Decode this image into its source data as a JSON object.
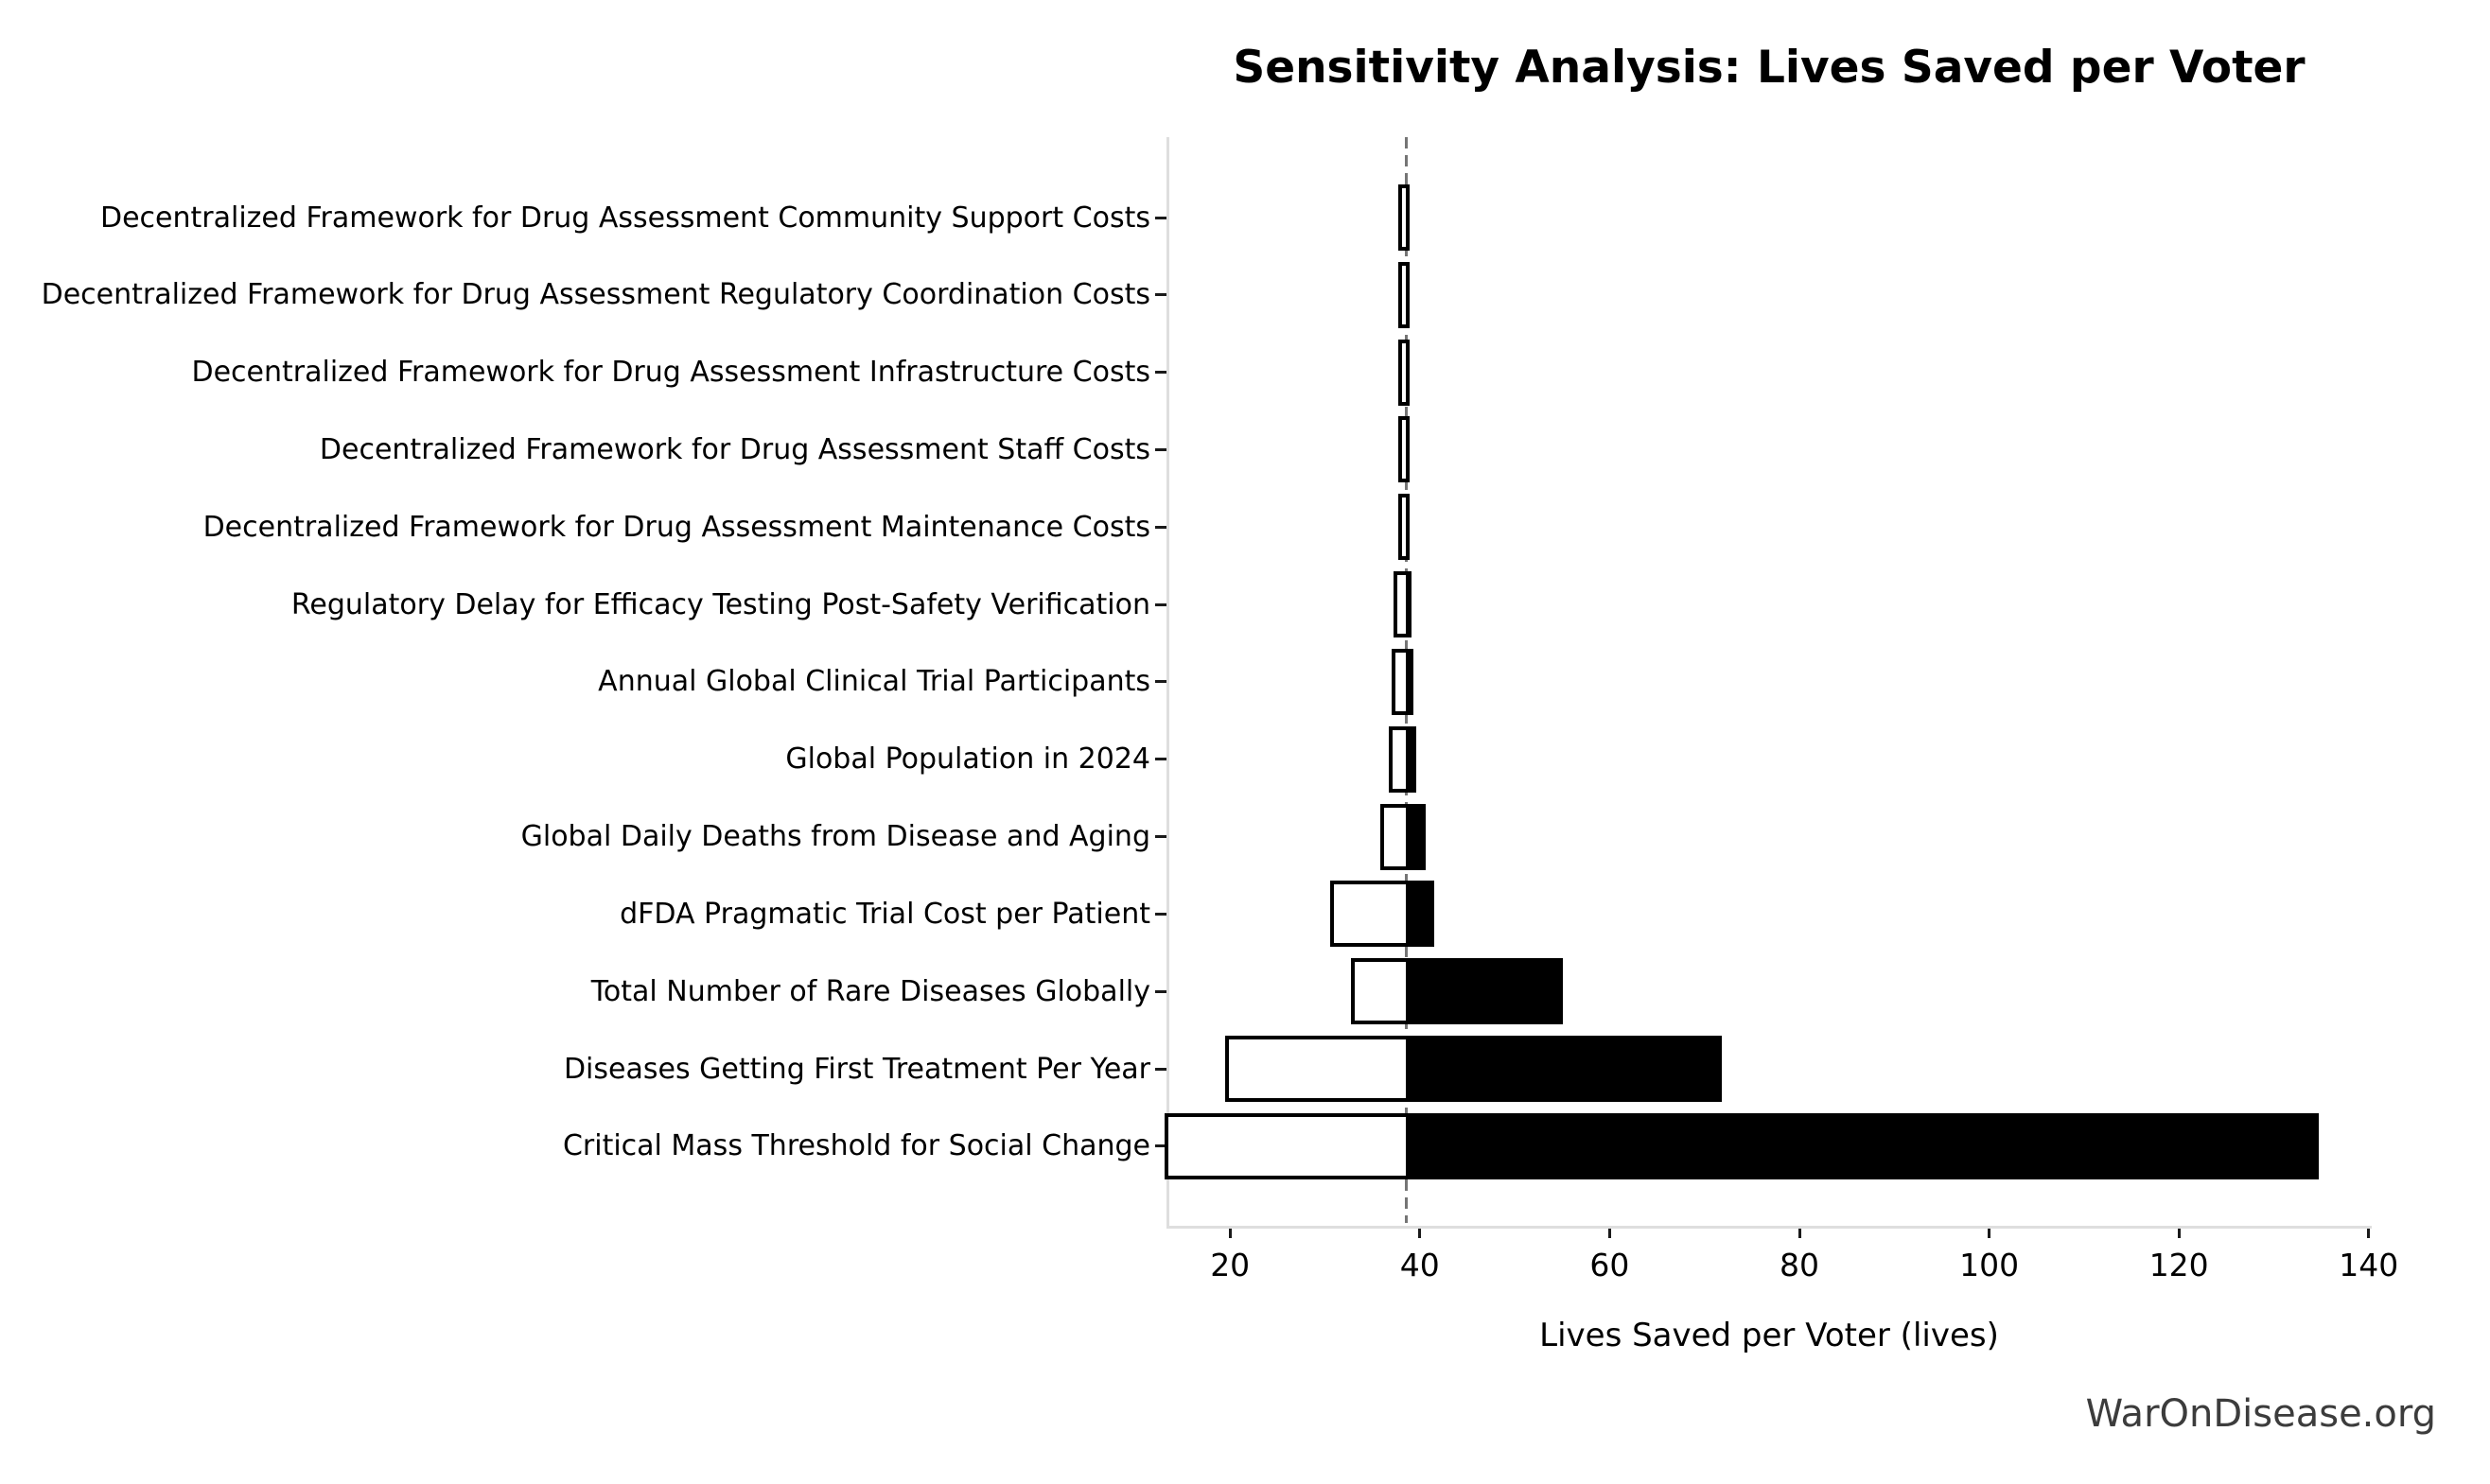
{
  "title": "Sensitivity Analysis: Lives Saved per Voter",
  "watermark": "WarOnDisease.org",
  "chart_data": {
    "type": "bar",
    "subtype": "tornado-sensitivity",
    "title": "Sensitivity Analysis: Lives Saved per Voter",
    "xlabel": "Lives Saved per Voter (lives)",
    "ylabel": "",
    "baseline": 38.5,
    "xlim": [
      13.3,
      140.3
    ],
    "xticks": [
      20,
      40,
      60,
      80,
      100,
      120,
      140
    ],
    "grid": false,
    "legend": "none",
    "baseline_line_style": "dashed-gray-vertical",
    "bar_colors": {
      "low_fill": "#ffffff",
      "high_fill": "#000000",
      "edge": "#000000"
    },
    "rows": [
      {
        "label": "Decentralized Framework for Drug Assessment Community Support Costs",
        "low": 38.1,
        "high": 38.9
      },
      {
        "label": "Decentralized Framework for Drug Assessment Regulatory Coordination Costs",
        "low": 38.1,
        "high": 38.9
      },
      {
        "label": "Decentralized Framework for Drug Assessment Infrastructure Costs",
        "low": 38.1,
        "high": 38.9
      },
      {
        "label": "Decentralized Framework for Drug Assessment Staff Costs",
        "low": 38.1,
        "high": 38.9
      },
      {
        "label": "Decentralized Framework for Drug Assessment Maintenance Costs",
        "low": 38.1,
        "high": 38.9
      },
      {
        "label": "Regulatory Delay for Efficacy Testing Post-Safety Verification",
        "low": 37.6,
        "high": 39.1
      },
      {
        "label": "Annual Global Clinical Trial Participants",
        "low": 37.4,
        "high": 39.3
      },
      {
        "label": "Global Population in 2024",
        "low": 37.1,
        "high": 39.6
      },
      {
        "label": "Global Daily Deaths from Disease and Aging",
        "low": 36.2,
        "high": 40.6
      },
      {
        "label": "dFDA Pragmatic Trial Cost per Patient",
        "low": 30.9,
        "high": 41.5
      },
      {
        "label": "Total Number of Rare Diseases Globally",
        "low": 33.1,
        "high": 55.1
      },
      {
        "label": "Diseases Getting First Treatment Per Year",
        "low": 19.9,
        "high": 71.8
      },
      {
        "label": "Critical Mass Threshold for Social Change",
        "low": 13.5,
        "high": 134.7
      }
    ]
  }
}
